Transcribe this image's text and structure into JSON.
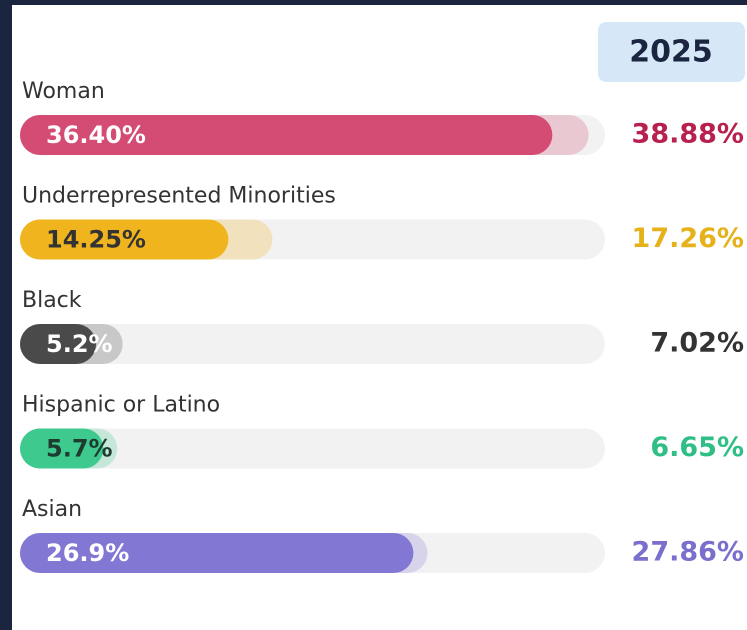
{
  "chart_data": {
    "type": "bar",
    "categories": [
      "Woman",
      "Underrepresented Minorities",
      "Black",
      "Hispanic or Latino",
      "Asian"
    ],
    "colors": [
      "#d44b73",
      "#f0b51e",
      "#4a4a4a",
      "#3ec98e",
      "#8278d4"
    ],
    "series": [
      {
        "values": [
          36.4,
          14.25,
          5.2,
          5.7,
          26.9
        ],
        "value_labels": [
          "36.40%",
          "14.25%",
          "5.2%",
          "5.7%",
          "26.9%"
        ]
      },
      {
        "name": "2025",
        "values": [
          38.88,
          17.26,
          7.02,
          6.65,
          27.86
        ],
        "value_labels": [
          "38.88%",
          "17.26%",
          "7.02%",
          "6.65%",
          "27.86%"
        ],
        "colors": [
          "#b8204e",
          "#e6b21a",
          "#333333",
          "#2fbf86",
          "#7a6fcc"
        ]
      }
    ],
    "xlim": [
      0,
      40
    ]
  }
}
